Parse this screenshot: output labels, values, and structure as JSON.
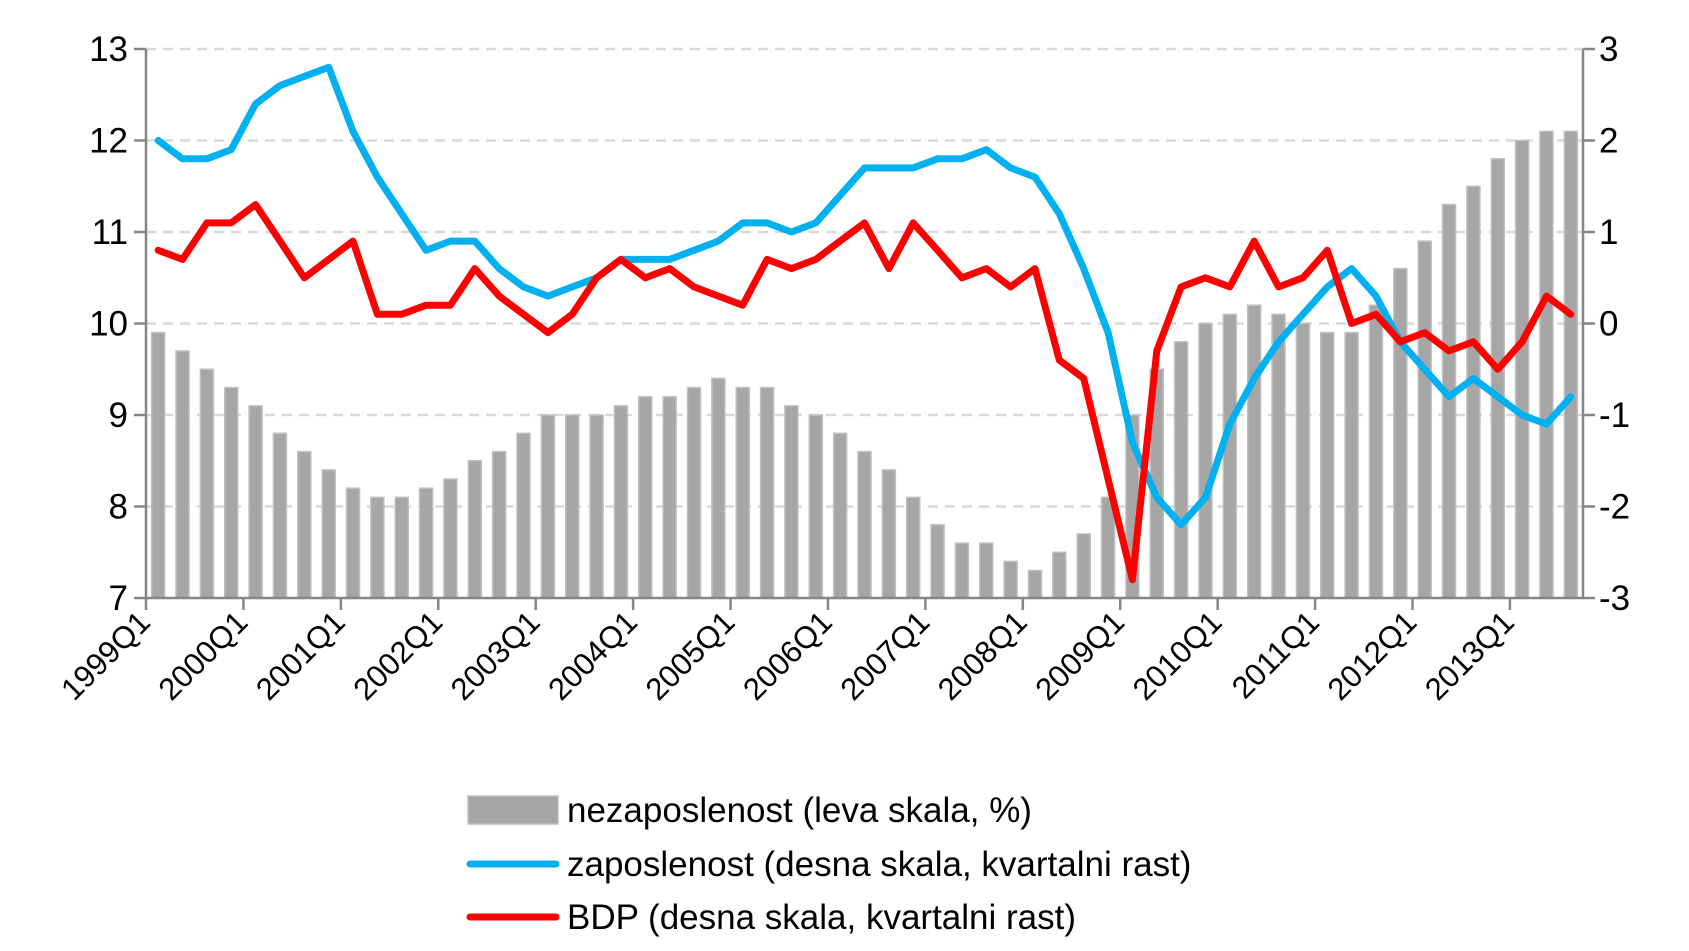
{
  "chart_data": {
    "type": "bar+line",
    "title": "",
    "categories_first": "1999Q1",
    "x_tick_labels": [
      "1999Q1",
      "2000Q1",
      "2001Q1",
      "2002Q1",
      "2003Q1",
      "2004Q1",
      "2005Q1",
      "2006Q1",
      "2007Q1",
      "2008Q1",
      "2009Q1",
      "2010Q1",
      "2011Q1",
      "2012Q1",
      "2013Q1"
    ],
    "y_left": {
      "lim": [
        7,
        13
      ],
      "ticks": [
        "7",
        "8",
        "9",
        "10",
        "11",
        "12",
        "13"
      ]
    },
    "y_right": {
      "lim": [
        -3,
        3
      ],
      "ticks": [
        "-3",
        "-2",
        "-1",
        "0",
        "1",
        "2",
        "3"
      ]
    },
    "grid": true,
    "legend_position": "bottom",
    "series": [
      {
        "name": "nezaposlenost (leva skala, %)",
        "type": "bar",
        "axis": "left",
        "color": "#a6a6a6",
        "values": [
          9.9,
          9.7,
          9.5,
          9.3,
          9.1,
          8.8,
          8.6,
          8.4,
          8.2,
          8.1,
          8.1,
          8.2,
          8.3,
          8.5,
          8.6,
          8.8,
          9.0,
          9.0,
          9.0,
          9.1,
          9.2,
          9.2,
          9.3,
          9.4,
          9.3,
          9.3,
          9.1,
          9.0,
          8.8,
          8.6,
          8.4,
          8.1,
          7.8,
          7.6,
          7.6,
          7.4,
          7.3,
          7.5,
          7.7,
          8.1,
          9.0,
          9.5,
          9.8,
          10.0,
          10.1,
          10.2,
          10.1,
          10.0,
          9.9,
          9.9,
          10.2,
          10.6,
          10.9,
          11.3,
          11.5,
          11.8,
          12.0,
          12.1,
          12.1
        ]
      },
      {
        "name": "zaposlenost (desna skala, kvartalni rast)",
        "type": "line",
        "axis": "right",
        "color": "#00b0f0",
        "values": [
          2.0,
          1.8,
          1.8,
          1.9,
          2.4,
          2.6,
          2.7,
          2.8,
          2.1,
          1.6,
          1.2,
          0.8,
          0.9,
          0.9,
          0.6,
          0.4,
          0.3,
          0.4,
          0.5,
          0.7,
          0.7,
          0.7,
          0.8,
          0.9,
          1.1,
          1.1,
          1.0,
          1.1,
          1.4,
          1.7,
          1.7,
          1.7,
          1.8,
          1.8,
          1.9,
          1.7,
          1.6,
          1.2,
          0.6,
          -0.1,
          -1.3,
          -1.9,
          -2.2,
          -1.9,
          -1.1,
          -0.6,
          -0.2,
          0.1,
          0.4,
          0.6,
          0.3,
          -0.2,
          -0.5,
          -0.8,
          -0.6,
          -0.8,
          -1.0,
          -1.1,
          -0.8
        ]
      },
      {
        "name": "BDP (desna skala, kvartalni rast)",
        "type": "line",
        "axis": "right",
        "color": "#ff0000",
        "values": [
          0.8,
          0.7,
          1.1,
          1.1,
          1.3,
          0.9,
          0.5,
          0.7,
          0.9,
          0.1,
          0.1,
          0.2,
          0.2,
          0.6,
          0.3,
          0.1,
          -0.1,
          0.1,
          0.5,
          0.7,
          0.5,
          0.6,
          0.4,
          0.3,
          0.2,
          0.7,
          0.6,
          0.7,
          0.9,
          1.1,
          0.6,
          1.1,
          0.8,
          0.5,
          0.6,
          0.4,
          0.6,
          -0.4,
          -0.6,
          -1.7,
          -2.8,
          -0.3,
          0.4,
          0.5,
          0.4,
          0.9,
          0.4,
          0.5,
          0.8,
          0.0,
          0.1,
          -0.2,
          -0.1,
          -0.3,
          -0.2,
          -0.5,
          -0.2,
          0.3,
          0.1
        ]
      }
    ]
  }
}
